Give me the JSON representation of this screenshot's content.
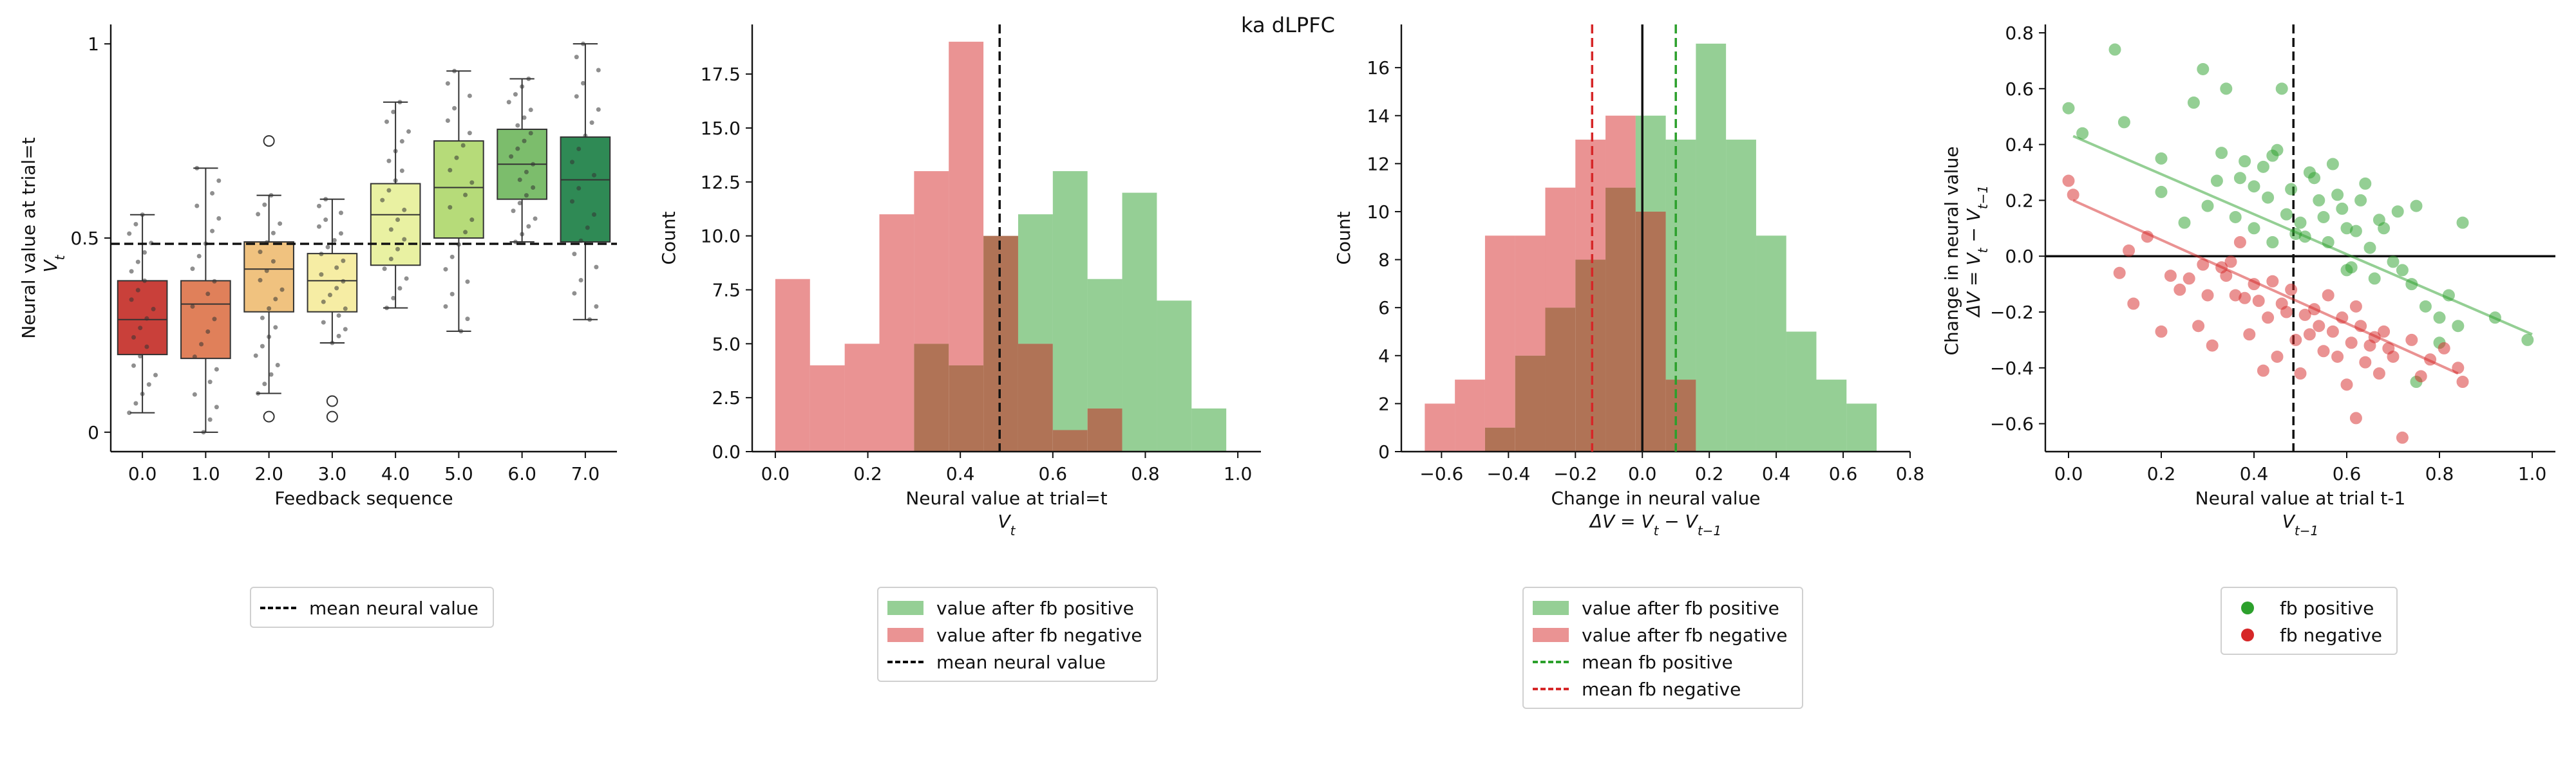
{
  "suptitle": "ka dLPFC",
  "colors": {
    "positive": "#2ca02c",
    "negative": "#d62728",
    "overlap": "#b07356",
    "box_palette": [
      "#c9403a",
      "#e0805a",
      "#f0c27f",
      "#f6eda4",
      "#e9f1a2",
      "#b6db79",
      "#7cbd6c",
      "#2f8a55"
    ]
  },
  "chart_data": [
    {
      "type": "box",
      "xlabel": "Feedback sequence",
      "ylabel_line1": "Neural value at trial=t",
      "ylabel_line2": "V_t",
      "categories": [
        "0.0",
        "1.0",
        "2.0",
        "3.0",
        "4.0",
        "5.0",
        "6.0",
        "7.0"
      ],
      "y_ticks": [
        "0",
        "0.5",
        "1"
      ],
      "ylim": [
        -0.05,
        1.05
      ],
      "hline": 0.485,
      "boxes": [
        {
          "q1": 0.2,
          "median": 0.29,
          "q3": 0.39,
          "lo": 0.05,
          "hi": 0.56,
          "outliers": []
        },
        {
          "q1": 0.19,
          "median": 0.33,
          "q3": 0.39,
          "lo": 0.0,
          "hi": 0.68,
          "outliers": []
        },
        {
          "q1": 0.31,
          "median": 0.42,
          "q3": 0.49,
          "lo": 0.1,
          "hi": 0.61,
          "outliers": [
            0.75,
            0.04
          ]
        },
        {
          "q1": 0.31,
          "median": 0.39,
          "q3": 0.46,
          "lo": 0.23,
          "hi": 0.6,
          "outliers": [
            0.08,
            0.04
          ]
        },
        {
          "q1": 0.43,
          "median": 0.56,
          "q3": 0.64,
          "lo": 0.32,
          "hi": 0.85,
          "outliers": []
        },
        {
          "q1": 0.5,
          "median": 0.63,
          "q3": 0.75,
          "lo": 0.26,
          "hi": 0.93,
          "outliers": []
        },
        {
          "q1": 0.6,
          "median": 0.69,
          "q3": 0.78,
          "lo": 0.49,
          "hi": 0.91,
          "outliers": []
        },
        {
          "q1": 0.49,
          "median": 0.65,
          "q3": 0.76,
          "lo": 0.29,
          "hi": 1.0,
          "outliers": []
        }
      ],
      "legend": [
        "mean neural value"
      ]
    },
    {
      "type": "histogram",
      "xlabel_line1": "Neural value at trial=t",
      "xlabel_line2": "V_t",
      "ylabel": "Count",
      "x_ticks": [
        "0.0",
        "0.2",
        "0.4",
        "0.6",
        "0.8",
        "1.0"
      ],
      "y_ticks": [
        "0.0",
        "2.5",
        "5.0",
        "7.5",
        "10.0",
        "12.5",
        "15.0",
        "17.5"
      ],
      "xlim": [
        -0.05,
        1.05
      ],
      "ylim": [
        0,
        19.8
      ],
      "bin_edges": [
        0.0,
        0.075,
        0.15,
        0.225,
        0.3,
        0.375,
        0.45,
        0.525,
        0.6,
        0.675,
        0.75,
        0.825,
        0.9,
        0.975
      ],
      "series": [
        {
          "name": "value after fb positive",
          "counts": [
            0,
            0,
            0,
            0,
            5,
            4,
            10,
            11,
            13,
            8,
            12,
            7,
            2
          ]
        },
        {
          "name": "value after fb negative",
          "counts": [
            8,
            4,
            5,
            11,
            13,
            19,
            10,
            5,
            1,
            2,
            0,
            0,
            0
          ]
        }
      ],
      "vline": 0.485,
      "legend": [
        "value after fb positive",
        "value after fb negative",
        "mean neural value"
      ]
    },
    {
      "type": "histogram",
      "xlabel_line1": "Change in neural value",
      "xlabel_line2": "ΔV = V_t - V_t-1",
      "ylabel": "Count",
      "x_ticks": [
        "−0.6",
        "−0.4",
        "−0.2",
        "0.0",
        "0.2",
        "0.4",
        "0.6",
        "0.8"
      ],
      "y_ticks": [
        "0",
        "2",
        "4",
        "6",
        "8",
        "10",
        "12",
        "14",
        "16"
      ],
      "xlim": [
        -0.72,
        0.8
      ],
      "ylim": [
        0,
        17.8
      ],
      "bin_edges": [
        -0.65,
        -0.56,
        -0.47,
        -0.38,
        -0.29,
        -0.2,
        -0.11,
        -0.02,
        0.07,
        0.16,
        0.25,
        0.34,
        0.43,
        0.52,
        0.61,
        0.7
      ],
      "series": [
        {
          "name": "value after fb positive",
          "counts": [
            0,
            0,
            1,
            4,
            6,
            8,
            11,
            14,
            13,
            17,
            13,
            9,
            5,
            3,
            2
          ]
        },
        {
          "name": "value after fb negative",
          "counts": [
            2,
            3,
            9,
            9,
            11,
            13,
            14,
            10,
            3,
            0,
            0,
            0,
            0,
            0,
            0
          ]
        }
      ],
      "vlines": [
        {
          "x": 0.0,
          "style": "solid"
        },
        {
          "x": 0.1,
          "style": "dashed-positive",
          "label": "mean fb positive"
        },
        {
          "x": -0.15,
          "style": "dashed-negative",
          "label": "mean fb negative"
        }
      ],
      "legend": [
        "value after fb positive",
        "value after fb negative",
        "mean fb positive",
        "mean fb negative"
      ]
    },
    {
      "type": "scatter",
      "xlabel_line1": "Neural value at trial t-1",
      "xlabel_line2": "V_t-1",
      "ylabel_line1": "Change in neural value",
      "ylabel_line2": "ΔV = V_t - V_t-1",
      "x_ticks": [
        "0.0",
        "0.2",
        "0.4",
        "0.6",
        "0.8",
        "1.0"
      ],
      "y_ticks": [
        "−0.6",
        "−0.4",
        "−0.2",
        "0.0",
        "0.2",
        "0.4",
        "0.6",
        "0.8"
      ],
      "xlim": [
        -0.05,
        1.05
      ],
      "ylim": [
        -0.7,
        0.83
      ],
      "vline": 0.485,
      "series": [
        {
          "name": "fb positive",
          "fit": [
            [
              0.01,
              0.43
            ],
            [
              1.0,
              -0.28
            ]
          ],
          "points": [
            [
              0.0,
              0.53
            ],
            [
              0.03,
              0.44
            ],
            [
              0.1,
              0.74
            ],
            [
              0.12,
              0.48
            ],
            [
              0.2,
              0.35
            ],
            [
              0.2,
              0.23
            ],
            [
              0.25,
              0.12
            ],
            [
              0.27,
              0.55
            ],
            [
              0.29,
              0.67
            ],
            [
              0.3,
              0.18
            ],
            [
              0.32,
              0.27
            ],
            [
              0.33,
              0.37
            ],
            [
              0.34,
              0.6
            ],
            [
              0.36,
              0.14
            ],
            [
              0.37,
              0.28
            ],
            [
              0.38,
              0.34
            ],
            [
              0.4,
              0.25
            ],
            [
              0.4,
              0.1
            ],
            [
              0.42,
              0.32
            ],
            [
              0.43,
              0.21
            ],
            [
              0.44,
              0.05
            ],
            [
              0.44,
              0.36
            ],
            [
              0.45,
              0.38
            ],
            [
              0.46,
              0.6
            ],
            [
              0.47,
              0.15
            ],
            [
              0.48,
              0.24
            ],
            [
              0.49,
              0.08
            ],
            [
              0.5,
              0.12
            ],
            [
              0.51,
              0.07
            ],
            [
              0.52,
              0.3
            ],
            [
              0.53,
              0.28
            ],
            [
              0.54,
              0.2
            ],
            [
              0.55,
              0.14
            ],
            [
              0.56,
              0.05
            ],
            [
              0.57,
              0.33
            ],
            [
              0.58,
              0.22
            ],
            [
              0.59,
              0.17
            ],
            [
              0.6,
              0.1
            ],
            [
              0.61,
              -0.04
            ],
            [
              0.62,
              0.09
            ],
            [
              0.63,
              0.2
            ],
            [
              0.64,
              0.26
            ],
            [
              0.65,
              0.03
            ],
            [
              0.66,
              -0.08
            ],
            [
              0.67,
              0.13
            ],
            [
              0.68,
              0.1
            ],
            [
              0.7,
              -0.02
            ],
            [
              0.71,
              0.16
            ],
            [
              0.72,
              -0.05
            ],
            [
              0.74,
              -0.1
            ],
            [
              0.75,
              0.18
            ],
            [
              0.77,
              -0.18
            ],
            [
              0.8,
              -0.22
            ],
            [
              0.82,
              -0.14
            ],
            [
              0.84,
              -0.25
            ],
            [
              0.85,
              0.12
            ],
            [
              0.92,
              -0.22
            ],
            [
              0.99,
              -0.3
            ],
            [
              0.8,
              -0.31
            ],
            [
              0.75,
              -0.45
            ],
            [
              0.6,
              -0.05
            ]
          ]
        },
        {
          "name": "fb negative",
          "fit": [
            [
              0.01,
              0.2
            ],
            [
              0.84,
              -0.42
            ]
          ],
          "points": [
            [
              0.0,
              0.27
            ],
            [
              0.01,
              0.22
            ],
            [
              0.11,
              -0.06
            ],
            [
              0.13,
              0.02
            ],
            [
              0.14,
              -0.17
            ],
            [
              0.17,
              0.07
            ],
            [
              0.2,
              -0.27
            ],
            [
              0.22,
              -0.07
            ],
            [
              0.24,
              -0.12
            ],
            [
              0.26,
              -0.08
            ],
            [
              0.28,
              -0.25
            ],
            [
              0.29,
              -0.03
            ],
            [
              0.3,
              -0.14
            ],
            [
              0.31,
              -0.32
            ],
            [
              0.33,
              -0.04
            ],
            [
              0.34,
              -0.07
            ],
            [
              0.35,
              -0.02
            ],
            [
              0.36,
              -0.14
            ],
            [
              0.37,
              0.05
            ],
            [
              0.38,
              -0.15
            ],
            [
              0.39,
              -0.28
            ],
            [
              0.4,
              -0.1
            ],
            [
              0.41,
              -0.16
            ],
            [
              0.42,
              -0.41
            ],
            [
              0.43,
              -0.22
            ],
            [
              0.44,
              -0.09
            ],
            [
              0.45,
              -0.36
            ],
            [
              0.46,
              -0.17
            ],
            [
              0.47,
              -0.2
            ],
            [
              0.48,
              -0.12
            ],
            [
              0.49,
              -0.3
            ],
            [
              0.5,
              -0.42
            ],
            [
              0.51,
              -0.21
            ],
            [
              0.52,
              -0.28
            ],
            [
              0.53,
              -0.19
            ],
            [
              0.54,
              -0.25
            ],
            [
              0.55,
              -0.34
            ],
            [
              0.56,
              -0.14
            ],
            [
              0.57,
              -0.27
            ],
            [
              0.58,
              -0.36
            ],
            [
              0.59,
              -0.22
            ],
            [
              0.6,
              -0.46
            ],
            [
              0.61,
              -0.31
            ],
            [
              0.62,
              -0.18
            ],
            [
              0.63,
              -0.25
            ],
            [
              0.64,
              -0.38
            ],
            [
              0.65,
              -0.32
            ],
            [
              0.66,
              -0.29
            ],
            [
              0.67,
              -0.42
            ],
            [
              0.68,
              -0.27
            ],
            [
              0.69,
              -0.33
            ],
            [
              0.7,
              -0.36
            ],
            [
              0.72,
              -0.65
            ],
            [
              0.74,
              -0.3
            ],
            [
              0.76,
              -0.43
            ],
            [
              0.78,
              -0.37
            ],
            [
              0.81,
              -0.33
            ],
            [
              0.84,
              -0.4
            ],
            [
              0.85,
              -0.45
            ],
            [
              0.62,
              -0.58
            ]
          ]
        }
      ],
      "legend": [
        "fb positive",
        "fb negative"
      ]
    }
  ]
}
